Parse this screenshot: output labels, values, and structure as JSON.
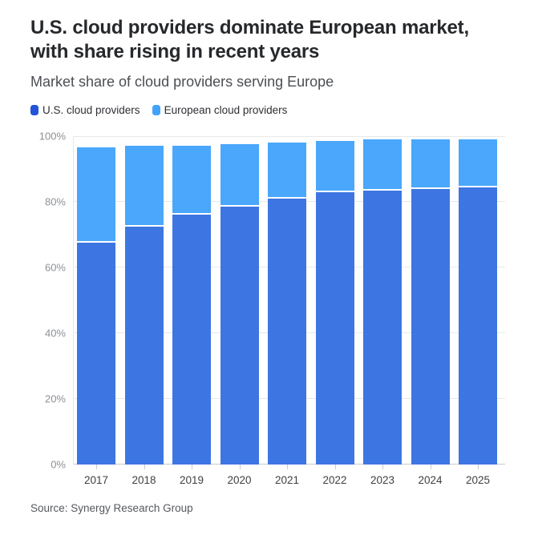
{
  "header": {
    "title": "U.S. cloud providers dominate European market, with share rising in recent years",
    "subtitle": "Market share of cloud providers serving Europe"
  },
  "legend": [
    {
      "label": "U.S. cloud providers",
      "color": "#2253d8"
    },
    {
      "label": "European cloud providers",
      "color": "#41a3fa"
    }
  ],
  "source": "Source: Synergy Research Group",
  "chart_data": {
    "type": "bar",
    "subtype": "stacked-column",
    "title": "U.S. cloud providers dominate European market, with share rising in recent years",
    "subtitle": "Market share of cloud providers serving Europe",
    "categories": [
      "2017",
      "2018",
      "2019",
      "2020",
      "2021",
      "2022",
      "2023",
      "2024",
      "2025"
    ],
    "series": [
      {
        "name": "U.S. cloud providers",
        "color": "#3d76e2",
        "values": [
          67.5,
          72.5,
          76,
          78.5,
          81,
          83,
          83.5,
          84,
          84.5
        ]
      },
      {
        "name": "European cloud providers",
        "color": "#4aa7fb",
        "values": [
          29,
          24.5,
          21,
          19,
          17,
          15.5,
          15.5,
          15,
          14.5
        ]
      }
    ],
    "xlabel": "",
    "ylabel": "",
    "ylim": [
      0,
      100
    ],
    "yticks": [
      {
        "value": 0,
        "label": "0%"
      },
      {
        "value": 20,
        "label": "20%"
      },
      {
        "value": 40,
        "label": "40%"
      },
      {
        "value": 60,
        "label": "60%"
      },
      {
        "value": 80,
        "label": "80%"
      },
      {
        "value": 100,
        "label": "100%"
      }
    ],
    "grid": true,
    "legend_position": "top",
    "units": "percent"
  }
}
